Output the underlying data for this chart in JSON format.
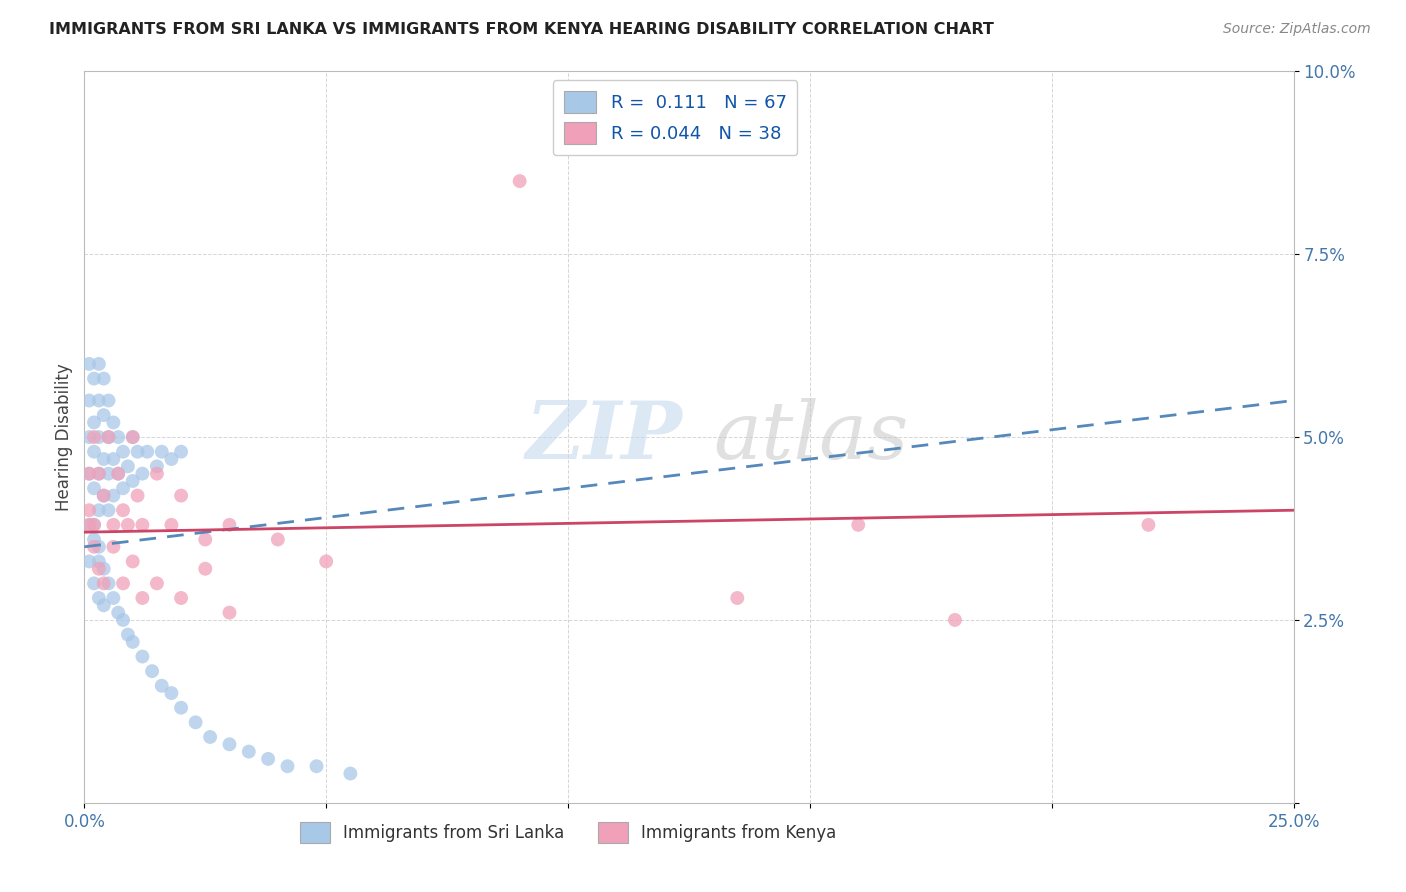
{
  "title": "IMMIGRANTS FROM SRI LANKA VS IMMIGRANTS FROM KENYA HEARING DISABILITY CORRELATION CHART",
  "source": "Source: ZipAtlas.com",
  "ylabel": "Hearing Disability",
  "xlim": [
    0.0,
    0.25
  ],
  "ylim": [
    0.0,
    0.1
  ],
  "xticklabels_pos": [
    0.0,
    0.05,
    0.1,
    0.15,
    0.2,
    0.25
  ],
  "xticklabels": [
    "0.0%",
    "",
    "",
    "",
    "",
    "25.0%"
  ],
  "yticks_pos": [
    0.0,
    0.025,
    0.05,
    0.075,
    0.1
  ],
  "yticklabels": [
    "",
    "2.5%",
    "5.0%",
    "7.5%",
    "10.0%"
  ],
  "legend_labels": [
    "Immigrants from Sri Lanka",
    "Immigrants from Kenya"
  ],
  "legend_R": [
    "0.111",
    "0.044"
  ],
  "legend_N": [
    "67",
    "38"
  ],
  "sri_lanka_color": "#a8c8e8",
  "kenya_color": "#f0a0b8",
  "sri_lanka_line_color": "#5588bb",
  "kenya_line_color": "#cc4466",
  "sl_line_x0": 0.0,
  "sl_line_y0": 0.035,
  "sl_line_x1": 0.25,
  "sl_line_y1": 0.055,
  "ke_line_x0": 0.0,
  "ke_line_y0": 0.037,
  "ke_line_x1": 0.25,
  "ke_line_y1": 0.04,
  "sl_x": [
    0.001,
    0.001,
    0.001,
    0.001,
    0.002,
    0.002,
    0.002,
    0.002,
    0.002,
    0.003,
    0.003,
    0.003,
    0.003,
    0.003,
    0.003,
    0.004,
    0.004,
    0.004,
    0.004,
    0.005,
    0.005,
    0.005,
    0.005,
    0.006,
    0.006,
    0.006,
    0.007,
    0.007,
    0.008,
    0.008,
    0.009,
    0.01,
    0.01,
    0.011,
    0.012,
    0.013,
    0.015,
    0.016,
    0.018,
    0.02,
    0.001,
    0.001,
    0.002,
    0.002,
    0.003,
    0.003,
    0.004,
    0.004,
    0.005,
    0.006,
    0.007,
    0.008,
    0.009,
    0.01,
    0.012,
    0.014,
    0.016,
    0.018,
    0.02,
    0.023,
    0.026,
    0.03,
    0.034,
    0.038,
    0.042,
    0.048,
    0.055
  ],
  "sl_y": [
    0.06,
    0.055,
    0.05,
    0.045,
    0.058,
    0.052,
    0.048,
    0.043,
    0.038,
    0.06,
    0.055,
    0.05,
    0.045,
    0.04,
    0.035,
    0.058,
    0.053,
    0.047,
    0.042,
    0.055,
    0.05,
    0.045,
    0.04,
    0.052,
    0.047,
    0.042,
    0.05,
    0.045,
    0.048,
    0.043,
    0.046,
    0.05,
    0.044,
    0.048,
    0.045,
    0.048,
    0.046,
    0.048,
    0.047,
    0.048,
    0.038,
    0.033,
    0.036,
    0.03,
    0.033,
    0.028,
    0.032,
    0.027,
    0.03,
    0.028,
    0.026,
    0.025,
    0.023,
    0.022,
    0.02,
    0.018,
    0.016,
    0.015,
    0.013,
    0.011,
    0.009,
    0.008,
    0.007,
    0.006,
    0.005,
    0.005,
    0.004
  ],
  "ke_x": [
    0.001,
    0.001,
    0.002,
    0.002,
    0.003,
    0.004,
    0.005,
    0.006,
    0.007,
    0.008,
    0.009,
    0.01,
    0.011,
    0.012,
    0.015,
    0.018,
    0.02,
    0.025,
    0.03,
    0.001,
    0.002,
    0.003,
    0.004,
    0.006,
    0.008,
    0.01,
    0.012,
    0.015,
    0.02,
    0.025,
    0.03,
    0.04,
    0.05,
    0.09,
    0.16,
    0.22,
    0.18,
    0.135
  ],
  "ke_y": [
    0.045,
    0.04,
    0.05,
    0.038,
    0.045,
    0.042,
    0.05,
    0.038,
    0.045,
    0.04,
    0.038,
    0.05,
    0.042,
    0.038,
    0.045,
    0.038,
    0.042,
    0.036,
    0.038,
    0.038,
    0.035,
    0.032,
    0.03,
    0.035,
    0.03,
    0.033,
    0.028,
    0.03,
    0.028,
    0.032,
    0.026,
    0.036,
    0.033,
    0.085,
    0.038,
    0.038,
    0.025,
    0.028
  ]
}
